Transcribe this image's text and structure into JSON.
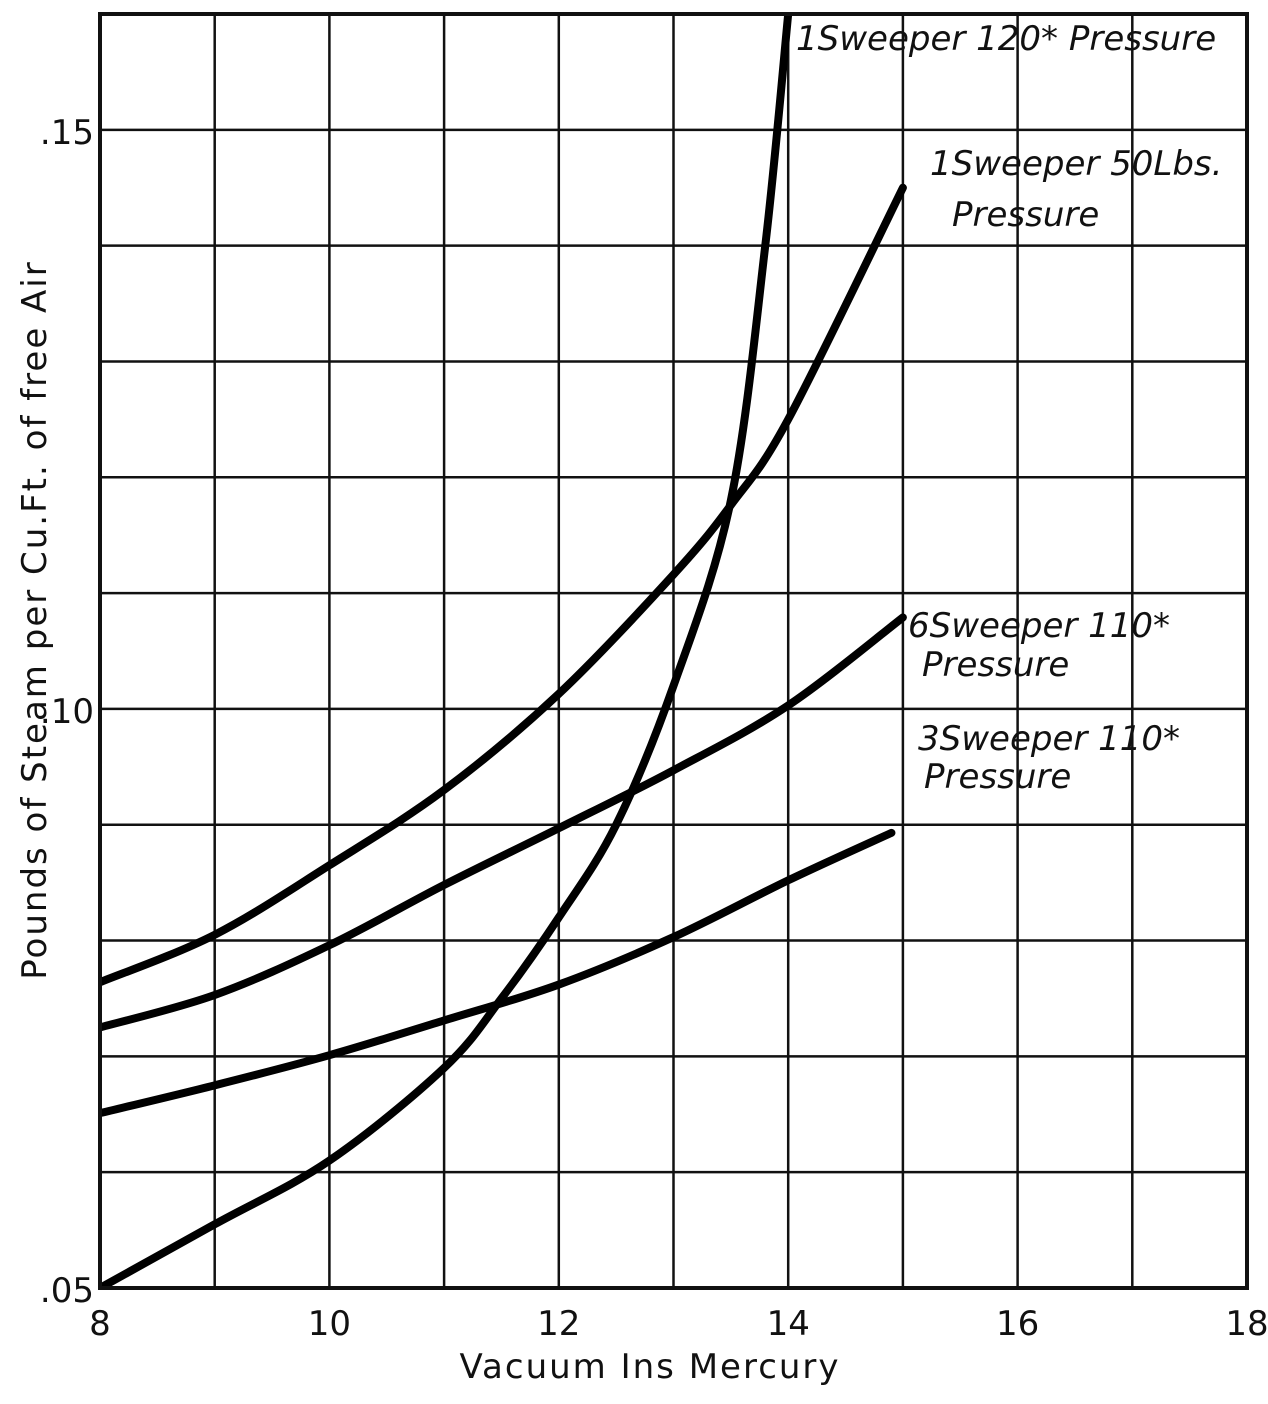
{
  "chart_data": {
    "type": "line",
    "title": "",
    "xlabel": "Vacuum Ins Mercury",
    "ylabel": "Pounds of Steam per Cu.Ft. of free Air",
    "xlim": [
      8,
      18
    ],
    "ylim": [
      0.05,
      0.16
    ],
    "grid": true,
    "x_ticks": [
      8,
      10,
      12,
      14,
      16,
      18
    ],
    "x_tick_labels": [
      "8",
      "10",
      "12",
      "14",
      "16",
      "18"
    ],
    "y_ticks": [
      0.05,
      0.1,
      0.15
    ],
    "y_tick_labels": [
      ".05",
      ".10",
      ".15"
    ],
    "series": [
      {
        "name": "1 Sweeper 120# Pressure",
        "label_lines": [
          "1Sweeper 120* Pressure"
        ],
        "x": [
          8,
          9,
          10,
          11,
          11.5,
          12,
          12.5,
          13,
          13.5,
          13.8,
          14.0
        ],
        "y": [
          0.05,
          0.0555,
          0.061,
          0.069,
          0.075,
          0.082,
          0.09,
          0.102,
          0.118,
          0.14,
          0.16
        ]
      },
      {
        "name": "1 Sweeper 50 Lbs. Pressure",
        "label_lines": [
          "1Sweeper 50Lbs.",
          "Pressure"
        ],
        "x": [
          8,
          9,
          10,
          11,
          12,
          13,
          13.5,
          14,
          15
        ],
        "y": [
          0.0764,
          0.0805,
          0.0865,
          0.093,
          0.1013,
          0.1116,
          0.1176,
          0.125,
          0.145
        ]
      },
      {
        "name": "6 Sweeper 110# Pressure",
        "label_lines": [
          "6Sweeper 110*",
          "Pressure"
        ],
        "x": [
          8,
          9,
          10,
          11,
          12,
          13,
          14,
          15
        ],
        "y": [
          0.0725,
          0.0753,
          0.0796,
          0.0848,
          0.0897,
          0.0947,
          0.1003,
          0.1079
        ]
      },
      {
        "name": "3 Sweeper 110# Pressure",
        "label_lines": [
          "3Sweeper 110*",
          "Pressure"
        ],
        "x": [
          8,
          9,
          10,
          11,
          12,
          13,
          14,
          14.9
        ],
        "y": [
          0.0651,
          0.0675,
          0.0701,
          0.0731,
          0.0762,
          0.0803,
          0.0852,
          0.0893
        ]
      }
    ]
  }
}
